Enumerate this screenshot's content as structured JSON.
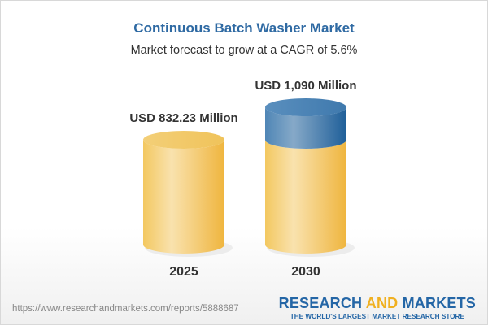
{
  "header": {
    "title": "Continuous Batch Washer Market",
    "subtitle": "Market forecast to grow at a CAGR of 5.6%"
  },
  "chart_data": {
    "type": "bar",
    "style": "3d-cylinder",
    "categories": [
      "2025",
      "2030"
    ],
    "values": [
      832.23,
      1090
    ],
    "data_labels": [
      "USD 832.23 Million",
      "USD 1,090 Million"
    ],
    "unit": "USD Million",
    "colors": {
      "base": "#f2c457",
      "growth": "#3b78ad"
    }
  },
  "footer": {
    "url": "https://www.researchandmarkets.com/reports/5888687",
    "logo_part1": "RESEARCH ",
    "logo_part2": "AND",
    "logo_part3": " MARKETS",
    "tagline": "THE WORLD'S LARGEST MARKET RESEARCH STORE"
  }
}
